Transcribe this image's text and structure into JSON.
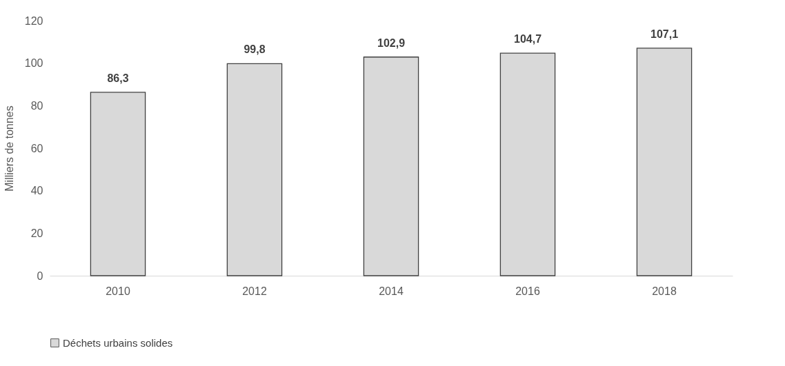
{
  "chart_data": {
    "type": "bar",
    "ylabel": "Milliers de tonnes",
    "categories": [
      "2010",
      "2012",
      "2014",
      "2016",
      "2018"
    ],
    "series": [
      {
        "name": "Déchets urbains solides",
        "color": "#d9d9d9",
        "values": [
          86.3,
          99.8,
          102.9,
          104.7,
          107.1
        ],
        "value_labels": [
          "86,3",
          "99,8",
          "102,9",
          "104,7",
          "107,1"
        ]
      }
    ],
    "ylim": [
      0,
      120
    ],
    "yticks": [
      0,
      20,
      40,
      60,
      80,
      100,
      120
    ],
    "grid": false,
    "legend": "bottom"
  }
}
